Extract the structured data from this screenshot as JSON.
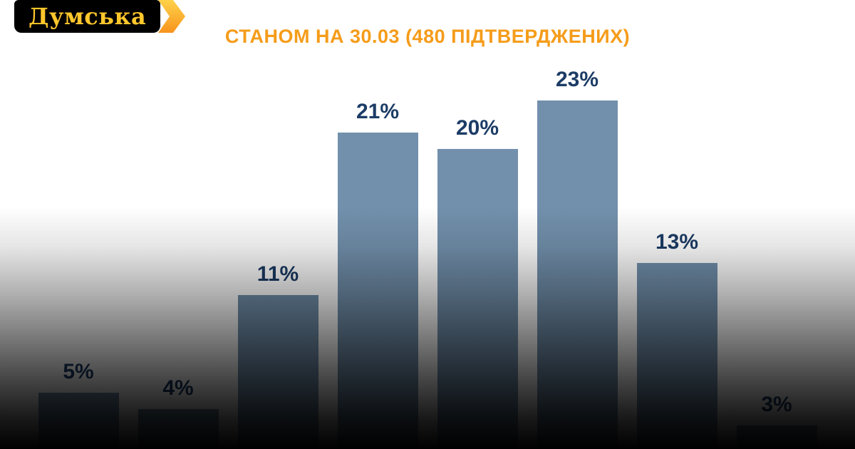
{
  "logo": {
    "text": "Думська",
    "bg_color": "#000000",
    "text_color": "#ffc72c",
    "arrow_color": "#f7941d"
  },
  "header": {
    "title": "СТАНОМ НА 30.03 (480 ПІДТВЕРДЖЕНИХ)",
    "title_color": "#f59c1a"
  },
  "chart_data": {
    "type": "bar",
    "title": "СТАНОМ НА 30.03 (480 ПІДТВЕРДЖЕНИХ)",
    "values": [
      5,
      4,
      11,
      21,
      20,
      23,
      13,
      3
    ],
    "labels": [
      "5%",
      "4%",
      "11%",
      "21%",
      "20%",
      "23%",
      "13%",
      "3%"
    ],
    "xlabel": "",
    "ylabel": "",
    "ylim": [
      0,
      25
    ],
    "grid": false,
    "legend": false,
    "bar_color": "#7290ac",
    "label_color": "#1c3c66",
    "background": "white fading to black at bottom"
  }
}
